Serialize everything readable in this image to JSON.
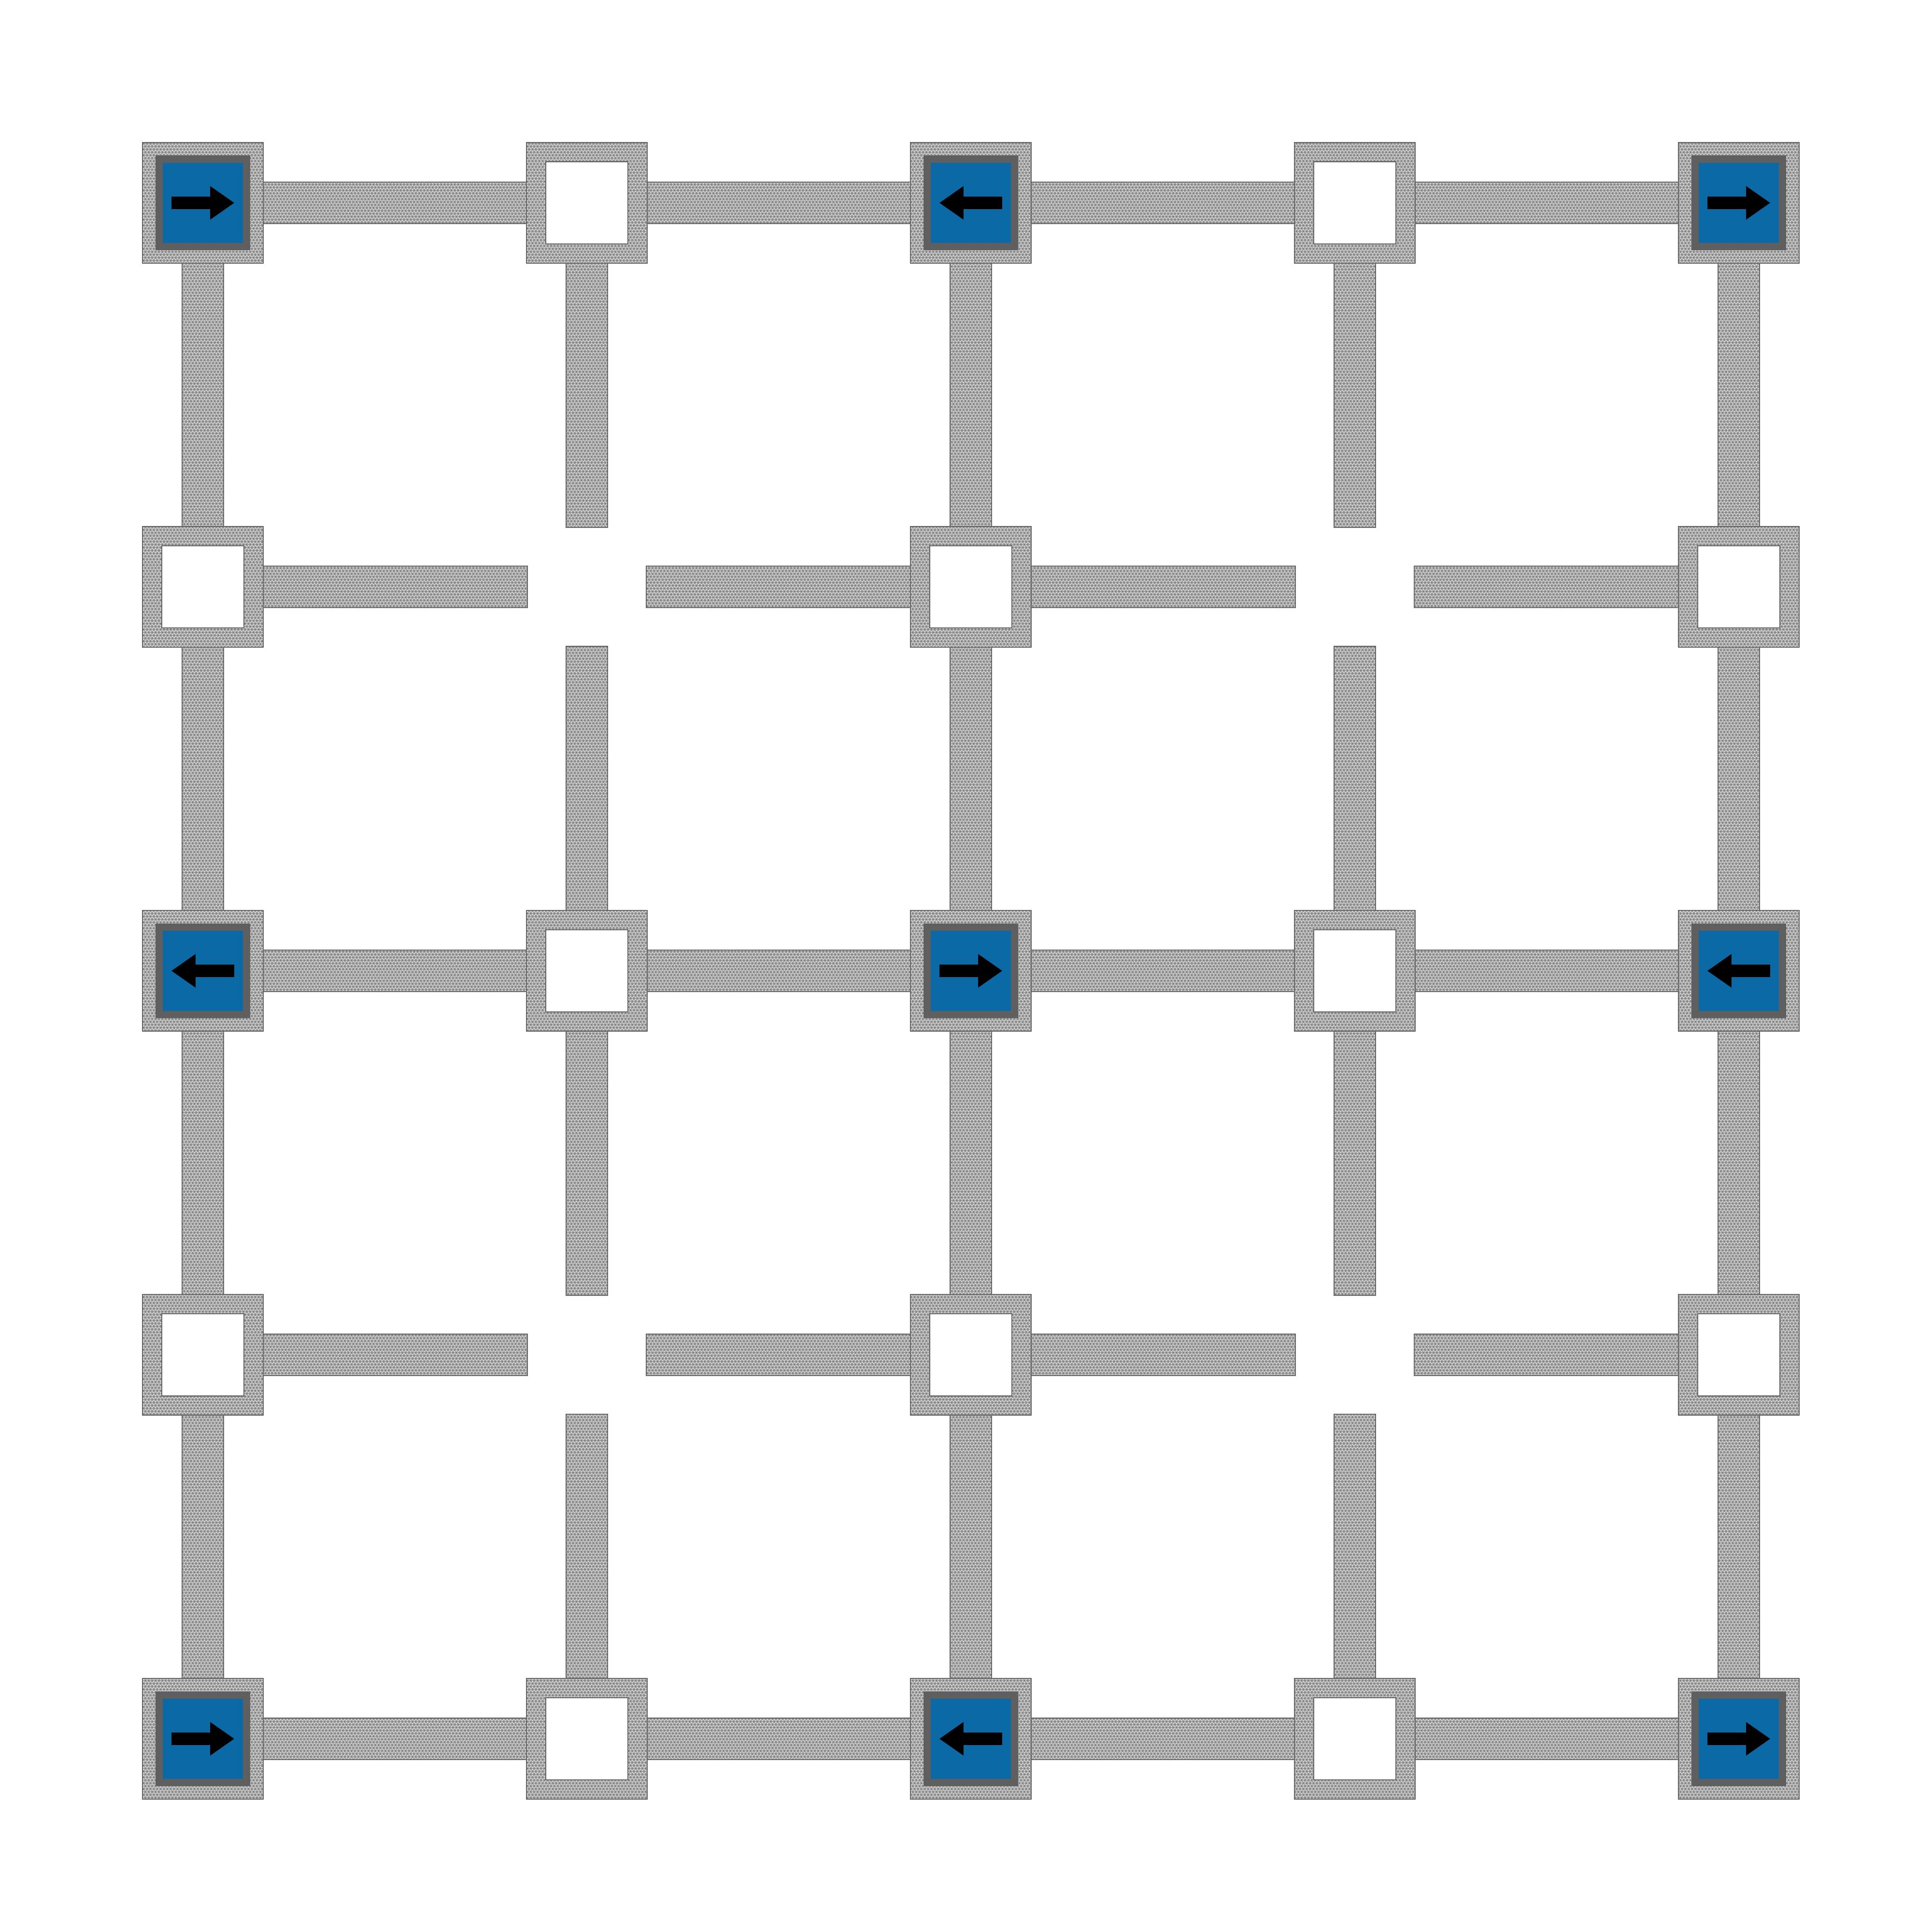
{
  "diagram": {
    "type": "lattice-mesh",
    "grid": {
      "rows": 5,
      "cols": 5
    },
    "colors": {
      "background": "#ffffff",
      "mesh_fill": "#d9d9d9",
      "mesh_line": "#666666",
      "actuator_fill": "#0b6aa6",
      "actuator_frame": "#5f5f5f",
      "arrow": "#000000"
    },
    "actuated_nodes": [
      {
        "row": 0,
        "col": 0,
        "direction": "right"
      },
      {
        "row": 0,
        "col": 2,
        "direction": "left"
      },
      {
        "row": 0,
        "col": 4,
        "direction": "right"
      },
      {
        "row": 2,
        "col": 0,
        "direction": "left"
      },
      {
        "row": 2,
        "col": 2,
        "direction": "right"
      },
      {
        "row": 2,
        "col": 4,
        "direction": "left"
      },
      {
        "row": 4,
        "col": 0,
        "direction": "right"
      },
      {
        "row": 4,
        "col": 2,
        "direction": "left"
      },
      {
        "row": 4,
        "col": 4,
        "direction": "right"
      }
    ],
    "passive_nodes": [
      {
        "row": 0,
        "col": 1
      },
      {
        "row": 0,
        "col": 3
      },
      {
        "row": 1,
        "col": 0
      },
      {
        "row": 1,
        "col": 2
      },
      {
        "row": 1,
        "col": 4
      },
      {
        "row": 2,
        "col": 1
      },
      {
        "row": 2,
        "col": 3
      },
      {
        "row": 3,
        "col": 0
      },
      {
        "row": 3,
        "col": 2
      },
      {
        "row": 3,
        "col": 4
      },
      {
        "row": 4,
        "col": 1
      },
      {
        "row": 4,
        "col": 3
      }
    ]
  }
}
